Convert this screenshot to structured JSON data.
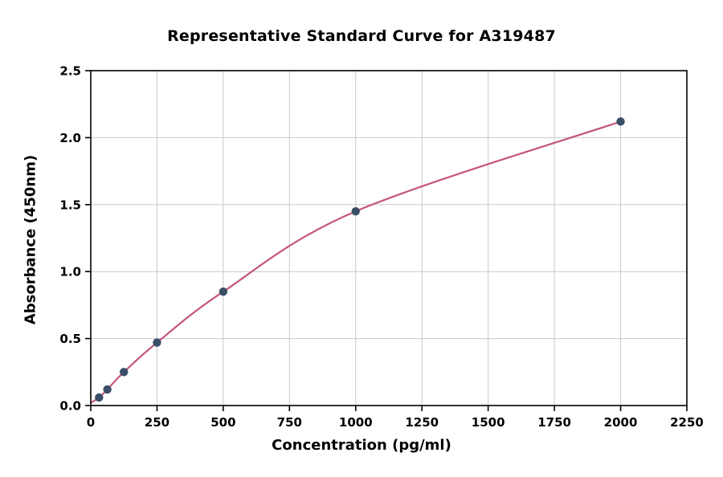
{
  "chart_data": {
    "type": "scatter",
    "title": "Representative Standard Curve for A319487",
    "xlabel": "Concentration (pg/ml)",
    "ylabel": "Absorbance (450nm)",
    "xlim": [
      0,
      2250
    ],
    "ylim": [
      0,
      2.5
    ],
    "xticks": [
      0,
      250,
      500,
      750,
      1000,
      1250,
      1500,
      1750,
      2000,
      2250
    ],
    "xtick_labels": [
      "0",
      "250",
      "500",
      "750",
      "1000",
      "1250",
      "1500",
      "1750",
      "2000",
      "2250"
    ],
    "yticks": [
      0,
      0.5,
      1.0,
      1.5,
      2.0,
      2.5
    ],
    "ytick_labels": [
      "0.0",
      "0.5",
      "1.0",
      "1.5",
      "2.0",
      "2.5"
    ],
    "grid": true,
    "legend": "none",
    "series": [
      {
        "name": "standard-points",
        "style": "marker",
        "x": [
          31.25,
          62.5,
          125,
          250,
          500,
          1000,
          2000
        ],
        "y": [
          0.06,
          0.12,
          0.25,
          0.47,
          0.85,
          1.45,
          2.12
        ]
      },
      {
        "name": "fitted-curve",
        "style": "line",
        "x": [
          0,
          31.25,
          62.5,
          125,
          250,
          500,
          1000,
          2000
        ],
        "y": [
          0.02,
          0.06,
          0.12,
          0.25,
          0.47,
          0.85,
          1.45,
          2.12
        ]
      }
    ],
    "colors": {
      "marker": "#3a4e66",
      "line": "#c4567e",
      "grid": "#c9c9c9",
      "spine": "#000000",
      "background": "#ffffff"
    }
  }
}
